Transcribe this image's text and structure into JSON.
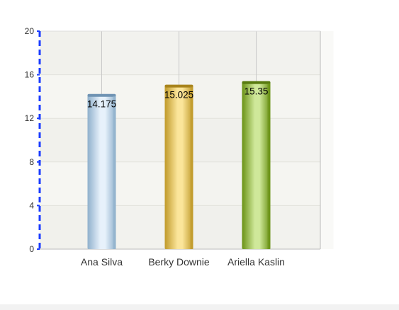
{
  "chart_data": {
    "type": "bar",
    "title": "",
    "xlabel": "",
    "ylabel": "",
    "categories": [
      "Ana Silva",
      "Berky Downie",
      "Ariella Kaslin"
    ],
    "values": [
      14.175,
      15.025,
      15.35
    ],
    "value_labels": [
      "14.175",
      "15.025",
      "15.35"
    ],
    "ylim": [
      0,
      20
    ],
    "yticks": [
      0,
      4,
      8,
      12,
      16,
      20
    ],
    "grid": true,
    "legend": "none",
    "colors": {
      "bars": [
        {
          "dark": "#8fb0cc",
          "light": "#e7f1fb",
          "top": "#6f93b3"
        },
        {
          "dark": "#c09a2a",
          "light": "#fbe59a",
          "top": "#a8841d"
        },
        {
          "dark": "#6a9215",
          "light": "#cfe89a",
          "top": "#577a0f"
        }
      ],
      "y_axis": "#1a3cff",
      "grid": "#cfcfcf",
      "plot_band_a": "#f6f6f2",
      "plot_band_b": "#ececE6"
    }
  }
}
